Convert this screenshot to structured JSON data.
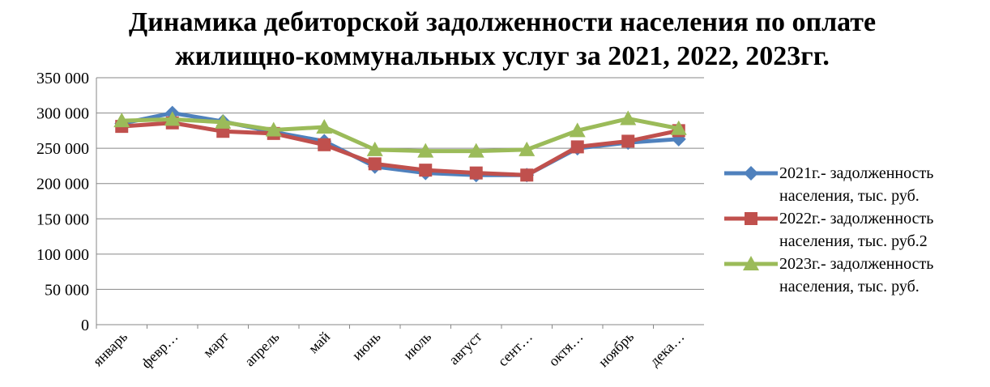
{
  "chart_data": {
    "type": "line",
    "title": [
      "Динамика дебиторской задолженности населения по оплате",
      "жилищно-коммунальных услуг за 2021, 2022, 2023гг."
    ],
    "categories": [
      "январь",
      "февр…",
      "март",
      "апрель",
      "май",
      "июнь",
      "июль",
      "август",
      "сент…",
      "октя…",
      "ноябрь",
      "дека…"
    ],
    "series": [
      {
        "name": "2021г.- задолженность населения, тыс. руб.",
        "color": "#4f81bd",
        "marker": "diamond",
        "values": [
          285000,
          300000,
          288000,
          273000,
          260000,
          224000,
          215000,
          212000,
          212000,
          250000,
          258000,
          263000
        ]
      },
      {
        "name": "2022г.- задолженность населения, тыс. руб.2",
        "color": "#c0504d",
        "marker": "square",
        "values": [
          281000,
          286000,
          274000,
          271000,
          255000,
          228000,
          219000,
          215000,
          212000,
          252000,
          260000,
          275000
        ]
      },
      {
        "name": "2023г.- задолженность населения, тыс. руб.",
        "color": "#9bbb59",
        "marker": "triangle",
        "values": [
          289000,
          291000,
          287000,
          276000,
          280000,
          248000,
          246000,
          246000,
          248000,
          275000,
          292000,
          278000
        ]
      }
    ],
    "ylim": [
      0,
      350000
    ],
    "yticks": [
      0,
      {
        "value": 50000,
        "label": "50 000"
      },
      {
        "value": 100000,
        "label": "100 000"
      },
      {
        "value": 150000,
        "label": "150 000"
      },
      {
        "value": 200000,
        "label": "200 000"
      },
      {
        "value": 250000,
        "label": "250 000"
      },
      {
        "value": 300000,
        "label": "300 000"
      },
      {
        "value": 350000,
        "label": "350 000"
      }
    ],
    "grid": true,
    "legend": "right"
  }
}
